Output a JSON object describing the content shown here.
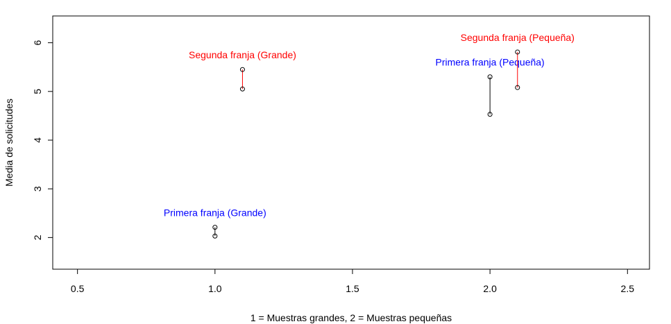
{
  "chart_data": {
    "type": "scatter",
    "title": "",
    "xlabel": "1 = Muestras grandes, 2 = Muestras pequeñas",
    "ylabel": "Media de solicitudes",
    "xlim": [
      0.41,
      2.58
    ],
    "ylim": [
      1.35,
      6.55
    ],
    "x_ticks": [
      0.5,
      1.0,
      1.5,
      2.0,
      2.5
    ],
    "x_tick_labels": [
      "0.5",
      "1.0",
      "1.5",
      "2.0",
      "2.5"
    ],
    "y_ticks": [
      2,
      3,
      4,
      5,
      6
    ],
    "y_tick_labels": [
      "2",
      "3",
      "4",
      "5",
      "6"
    ],
    "grid": false,
    "series": [
      {
        "name": "Primera franja (Grande)",
        "color": "#0000ff",
        "line_color": "#000000",
        "x": [
          1.0,
          1.0
        ],
        "y": [
          2.03,
          2.21
        ]
      },
      {
        "name": "Segunda franja (Grande)",
        "color": "#ff0000",
        "line_color": "#ff0000",
        "x": [
          1.1,
          1.1
        ],
        "y": [
          5.05,
          5.45
        ]
      },
      {
        "name": "Primera franja (Pequeña)",
        "color": "#0000ff",
        "line_color": "#000000",
        "x": [
          2.0,
          2.0
        ],
        "y": [
          4.53,
          5.3
        ]
      },
      {
        "name": "Segunda franja (Pequeña)",
        "color": "#ff0000",
        "line_color": "#ff0000",
        "x": [
          2.1,
          2.1
        ],
        "y": [
          5.08,
          5.81
        ]
      }
    ]
  }
}
